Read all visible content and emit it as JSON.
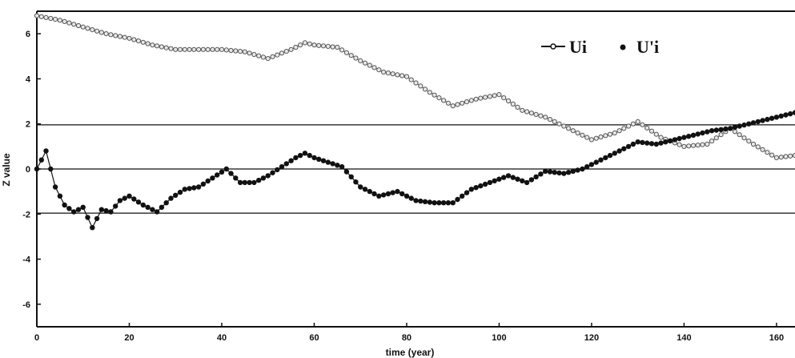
{
  "chart_data": {
    "type": "line",
    "title": "",
    "xlabel": "time (year)",
    "ylabel": "Z value",
    "xlim": [
      0,
      164
    ],
    "ylim": [
      -7,
      7
    ],
    "x_ticks": [
      0,
      20,
      40,
      60,
      80,
      100,
      120,
      140,
      160
    ],
    "y_ticks": [
      -6,
      -4,
      -2,
      0,
      2,
      4,
      6
    ],
    "reference_lines": [
      1.96,
      0,
      -1.96
    ],
    "legend_position": "top-right",
    "series": [
      {
        "name": "Ui",
        "marker": "open-circle",
        "color": "#8a8a8a",
        "x": [
          0,
          5,
          10,
          15,
          20,
          25,
          30,
          35,
          40,
          45,
          50,
          55,
          58,
          60,
          65,
          70,
          75,
          80,
          85,
          90,
          95,
          100,
          105,
          110,
          115,
          120,
          125,
          130,
          135,
          140,
          145,
          150,
          155,
          160,
          164
        ],
        "y": [
          6.8,
          6.6,
          6.3,
          6.0,
          5.8,
          5.5,
          5.3,
          5.3,
          5.3,
          5.2,
          4.9,
          5.3,
          5.6,
          5.5,
          5.4,
          4.8,
          4.3,
          4.1,
          3.4,
          2.8,
          3.1,
          3.3,
          2.6,
          2.3,
          1.8,
          1.3,
          1.6,
          2.1,
          1.4,
          1.0,
          1.1,
          1.8,
          1.1,
          0.5,
          0.6
        ]
      },
      {
        "name": "U'i",
        "marker": "filled-circle",
        "color": "#111111",
        "x": [
          0,
          2,
          4,
          6,
          8,
          10,
          12,
          14,
          16,
          18,
          20,
          23,
          26,
          29,
          32,
          35,
          38,
          41,
          44,
          47,
          50,
          53,
          56,
          58,
          60,
          63,
          66,
          70,
          74,
          78,
          82,
          86,
          90,
          94,
          98,
          102,
          106,
          110,
          114,
          118,
          122,
          126,
          130,
          134,
          138,
          142,
          146,
          150,
          154,
          158,
          162,
          164
        ],
        "y": [
          0,
          0.8,
          -0.8,
          -1.6,
          -1.9,
          -1.7,
          -2.6,
          -1.8,
          -1.9,
          -1.4,
          -1.2,
          -1.6,
          -1.9,
          -1.3,
          -0.9,
          -0.8,
          -0.4,
          0.0,
          -0.6,
          -0.6,
          -0.3,
          0.1,
          0.5,
          0.7,
          0.5,
          0.3,
          0.1,
          -0.8,
          -1.2,
          -1.0,
          -1.4,
          -1.5,
          -1.5,
          -0.9,
          -0.6,
          -0.3,
          -0.6,
          -0.1,
          -0.2,
          0.0,
          0.4,
          0.8,
          1.2,
          1.1,
          1.3,
          1.5,
          1.7,
          1.8,
          2.0,
          2.2,
          2.4,
          2.5
        ]
      }
    ]
  }
}
